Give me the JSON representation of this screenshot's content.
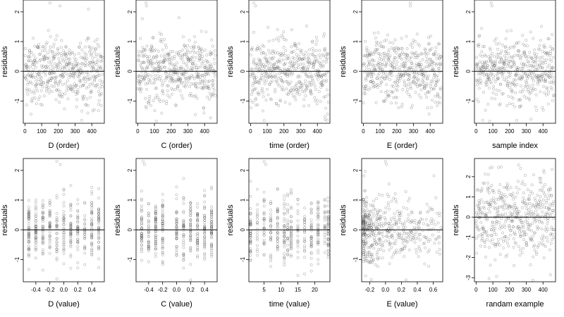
{
  "chart_data": [
    {
      "type": "scatter",
      "xlabel": "D (order)",
      "ylabel": "residuals",
      "xlim": [
        -10,
        475
      ],
      "ylim": [
        -1.75,
        2.4
      ],
      "xticks": [
        0,
        100,
        200,
        300,
        400
      ],
      "xtick_labels": [
        "0",
        "100",
        "200",
        "300",
        "400"
      ],
      "yticks": [
        -1,
        0,
        1,
        2
      ],
      "ytick_labels": [
        "-1",
        "0",
        "1",
        "2"
      ],
      "x_kind": "order",
      "n_points": 480,
      "outliers": [
        {
          "x": 150,
          "y": 2.3
        },
        {
          "x": 210,
          "y": 2.2
        }
      ],
      "reference_line_y": 0
    },
    {
      "type": "scatter",
      "xlabel": "C (order)",
      "ylabel": "residuals",
      "xlim": [
        -10,
        475
      ],
      "ylim": [
        -1.75,
        2.4
      ],
      "xticks": [
        0,
        100,
        200,
        300,
        400
      ],
      "xtick_labels": [
        "0",
        "100",
        "200",
        "300",
        "400"
      ],
      "yticks": [
        -1,
        0,
        1,
        2
      ],
      "ytick_labels": [
        "-1",
        "0",
        "1",
        "2"
      ],
      "x_kind": "order",
      "n_points": 480,
      "outliers": [
        {
          "x": 50,
          "y": 2.3
        },
        {
          "x": 52,
          "y": 2.2
        }
      ],
      "reference_line_y": 0
    },
    {
      "type": "scatter",
      "xlabel": "time (order)",
      "ylabel": "residuals",
      "xlim": [
        -10,
        475
      ],
      "ylim": [
        -1.75,
        2.4
      ],
      "xticks": [
        0,
        100,
        200,
        300,
        400
      ],
      "xtick_labels": [
        "0",
        "100",
        "200",
        "300",
        "400"
      ],
      "yticks": [
        -1,
        0,
        1,
        2
      ],
      "ytick_labels": [
        "-1",
        "0",
        "1",
        "2"
      ],
      "x_kind": "order",
      "n_points": 480,
      "outliers": [
        {
          "x": 20,
          "y": 2.3
        },
        {
          "x": 30,
          "y": 2.2
        }
      ],
      "reference_line_y": 0
    },
    {
      "type": "scatter",
      "xlabel": "E (order)",
      "ylabel": "residuals",
      "xlim": [
        -10,
        475
      ],
      "ylim": [
        -1.75,
        2.4
      ],
      "xticks": [
        0,
        100,
        200,
        300,
        400
      ],
      "xtick_labels": [
        "0",
        "100",
        "200",
        "300",
        "400"
      ],
      "yticks": [
        -1,
        0,
        1,
        2
      ],
      "ytick_labels": [
        "-1",
        "0",
        "1",
        "2"
      ],
      "x_kind": "order",
      "n_points": 480,
      "outliers": [
        {
          "x": 280,
          "y": 2.3
        },
        {
          "x": 282,
          "y": 2.2
        }
      ],
      "reference_line_y": 0
    },
    {
      "type": "scatter",
      "xlabel": "sample index",
      "ylabel": "residuals",
      "xlim": [
        -10,
        475
      ],
      "ylim": [
        -1.75,
        2.4
      ],
      "xticks": [
        0,
        100,
        200,
        300,
        400
      ],
      "xtick_labels": [
        "0",
        "100",
        "200",
        "300",
        "400"
      ],
      "yticks": [
        -1,
        0,
        1,
        2
      ],
      "ytick_labels": [
        "-1",
        "0",
        "1",
        "2"
      ],
      "x_kind": "order",
      "n_points": 480,
      "outliers": [
        {
          "x": 90,
          "y": 2.3
        },
        {
          "x": 95,
          "y": 2.2
        }
      ],
      "reference_line_y": 0
    },
    {
      "type": "scatter",
      "xlabel": "D (value)",
      "ylabel": "residuals",
      "xlim": [
        -0.58,
        0.58
      ],
      "ylim": [
        -1.75,
        2.4
      ],
      "xticks": [
        -0.4,
        -0.2,
        0.0,
        0.2,
        0.4
      ],
      "xtick_labels": [
        "-0.4",
        "-0.2",
        "0.0",
        "0.2",
        "0.4"
      ],
      "yticks": [
        -1,
        0,
        1,
        2
      ],
      "ytick_labels": [
        "-1",
        "0",
        "1",
        "2"
      ],
      "x_kind": "columns",
      "x_levels": [
        -0.5,
        -0.4,
        -0.3,
        -0.2,
        -0.1,
        0.0,
        0.1,
        0.2,
        0.3,
        0.4,
        0.5
      ],
      "n_points": 420,
      "outliers": [
        {
          "x": -0.1,
          "y": 2.3
        },
        {
          "x": -0.05,
          "y": 2.2
        }
      ],
      "reference_line_y": 0
    },
    {
      "type": "scatter",
      "xlabel": "C (value)",
      "ylabel": "residuals",
      "xlim": [
        -0.58,
        0.58
      ],
      "ylim": [
        -1.75,
        2.4
      ],
      "xticks": [
        -0.4,
        -0.2,
        0.0,
        0.2,
        0.4
      ],
      "xtick_labels": [
        "-0.4",
        "-0.2",
        "0.0",
        "0.2",
        "0.4"
      ],
      "yticks": [
        -1,
        0,
        1,
        2
      ],
      "ytick_labels": [
        "-1",
        "0",
        "1",
        "2"
      ],
      "x_kind": "columns",
      "x_levels": [
        -0.5,
        -0.4,
        -0.3,
        -0.2,
        0.0,
        0.1,
        0.2,
        0.3,
        0.4,
        0.5
      ],
      "n_points": 420,
      "outliers": [
        {
          "x": -0.48,
          "y": 2.3
        },
        {
          "x": -0.46,
          "y": 2.2
        }
      ],
      "reference_line_y": 0
    },
    {
      "type": "scatter",
      "xlabel": "time (value)",
      "ylabel": "residuals",
      "xlim": [
        0.5,
        24.5
      ],
      "ylim": [
        -1.75,
        2.4
      ],
      "xticks": [
        5,
        10,
        15,
        20
      ],
      "xtick_labels": [
        "5",
        "10",
        "15",
        "20"
      ],
      "yticks": [
        -1,
        0,
        1,
        2
      ],
      "ytick_labels": [
        "-1",
        "0",
        "1",
        "2"
      ],
      "x_kind": "columns",
      "x_levels": [
        1,
        3,
        5,
        7,
        9,
        11,
        12,
        13,
        15,
        17,
        19,
        21,
        23,
        24
      ],
      "n_points": 420,
      "outliers": [
        {
          "x": 5,
          "y": 2.3
        },
        {
          "x": 5.5,
          "y": 2.2
        }
      ],
      "reference_line_y": 0
    },
    {
      "type": "scatter",
      "xlabel": "E (value)",
      "ylabel": "residuals",
      "xlim": [
        -0.3,
        0.72
      ],
      "ylim": [
        -1.75,
        2.4
      ],
      "xticks": [
        -0.2,
        0.0,
        0.2,
        0.4,
        0.6
      ],
      "xtick_labels": [
        "-0.2",
        "0.0",
        "0.2",
        "0.4",
        "0.6"
      ],
      "yticks": [
        -1,
        0,
        1,
        2
      ],
      "ytick_labels": [
        "-1",
        "0",
        "1",
        "2"
      ],
      "x_kind": "skewed",
      "n_points": 480,
      "outliers": [
        {
          "x": 0.0,
          "y": 2.3
        },
        {
          "x": 0.01,
          "y": 2.2
        }
      ],
      "reference_line_y": 0
    },
    {
      "type": "scatter",
      "xlabel": "randam example",
      "ylabel": "residuals",
      "xlim": [
        -10,
        475
      ],
      "ylim": [
        -3.2,
        2.9
      ],
      "xticks": [
        0,
        100,
        200,
        300,
        400
      ],
      "xtick_labels": [
        "0",
        "100",
        "200",
        "300",
        "400"
      ],
      "yticks": [
        -3,
        -2,
        -1,
        0,
        1,
        2
      ],
      "ytick_labels": [
        "-3",
        "-2",
        "-1",
        "0",
        "1",
        "2"
      ],
      "x_kind": "order",
      "spread": 1.0,
      "n_points": 480,
      "outliers": [],
      "reference_line_y": 0
    }
  ]
}
